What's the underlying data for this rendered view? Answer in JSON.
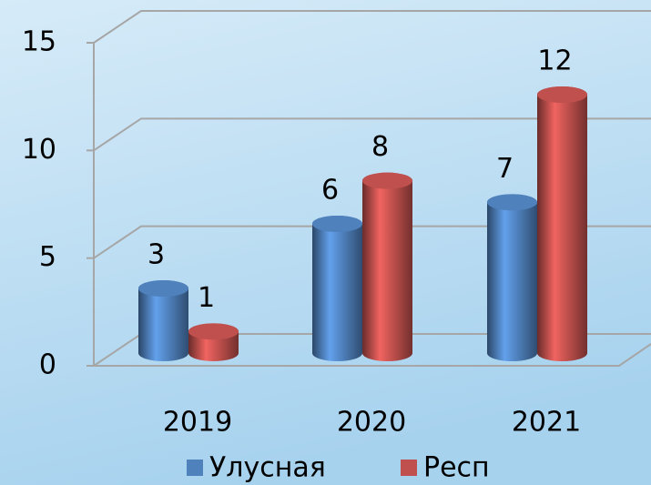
{
  "chart_data": {
    "type": "bar",
    "categories": [
      "2019",
      "2020",
      "2021"
    ],
    "series": [
      {
        "name": "Улусная",
        "color": "#4f81bd",
        "values": [
          3,
          6,
          7
        ]
      },
      {
        "name": "Респ",
        "color": "#c0504d",
        "values": [
          1,
          8,
          12
        ]
      }
    ],
    "ylim": [
      0,
      15
    ],
    "yticks": [
      0,
      5,
      10,
      15
    ],
    "grid": true,
    "legend": "bottom"
  }
}
